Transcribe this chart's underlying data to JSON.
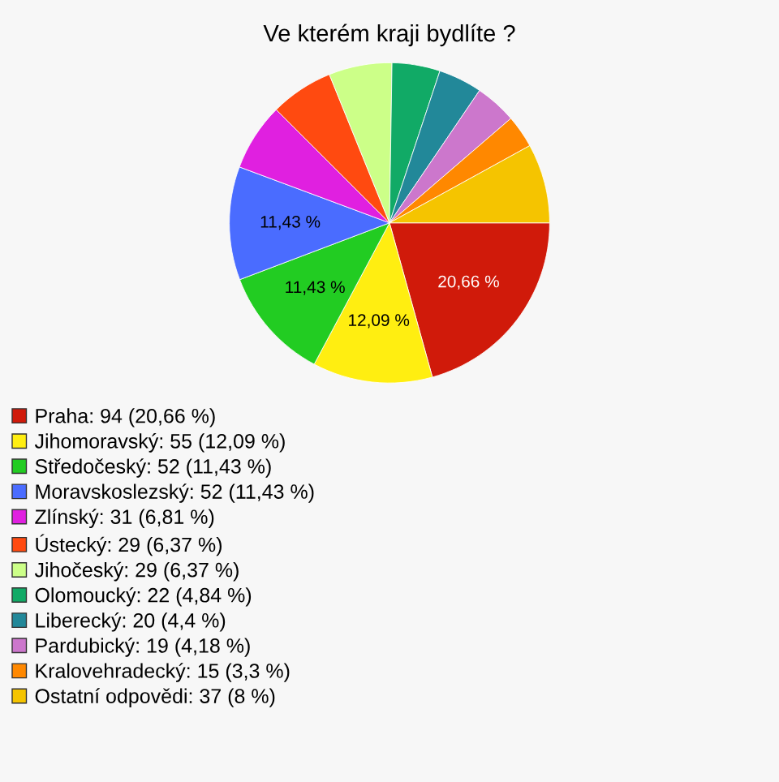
{
  "chart_data": {
    "type": "pie",
    "title": "Ve kterém kraji bydlíte ?",
    "categories": [
      "Praha: 94 (20,66 %)",
      "Jihomoravský: 55 (12,09 %)",
      "Středočeský: 52 (11,43 %)",
      "Moravskoslezský: 52 (11,43 %)",
      "Zlínský: 31 (6,81 %)",
      "Ústecký: 29 (6,37 %)",
      "Jihočeský: 29 (6,37 %)",
      "Olomoucký: 22 (4,84 %)",
      "Liberecký: 20 (4,4 %)",
      "Pardubický: 19 (4,18 %)",
      "Kralovehradecký: 15 (3,3 %)",
      "Ostatní odpovědi: 37 (8 %)"
    ],
    "values": [
      20.66,
      12.09,
      11.43,
      11.43,
      6.81,
      6.37,
      6.37,
      4.84,
      4.4,
      4.18,
      3.3,
      8
    ],
    "colors": [
      "#d01a0a",
      "#ffee11",
      "#22cc22",
      "#4a6cff",
      "#e020e0",
      "#ff4a10",
      "#ccff88",
      "#11aa66",
      "#228899",
      "#cc77cc",
      "#ff8800",
      "#f5c400"
    ],
    "value_labels": [
      "20,66 %",
      "12,09 %",
      "11,43 %",
      "11,43 %",
      null,
      null,
      null,
      null,
      null,
      null,
      null,
      null
    ],
    "legend": "bottom left"
  }
}
